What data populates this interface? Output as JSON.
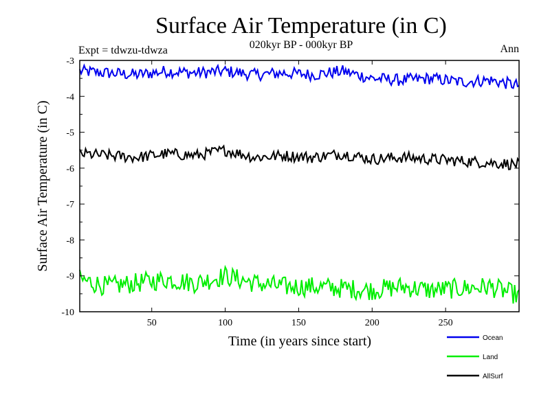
{
  "chart_data": {
    "type": "line",
    "title": "Surface Air Temperature (in C)",
    "subtitle": "020kyr BP - 000kyr BP",
    "annotation_left": "Expt = tdwzu-tdwza",
    "annotation_right": "Ann",
    "xlabel": "Time (in years since start)",
    "ylabel": "Surface Air Temperature (in C)",
    "xlim": [
      1,
      300
    ],
    "ylim": [
      -10,
      -3
    ],
    "x_ticks": [
      50,
      100,
      150,
      200,
      250
    ],
    "x_tick_labels": [
      "50",
      "100",
      "150",
      "200",
      "250"
    ],
    "y_ticks": [
      -3,
      -4,
      -5,
      -6,
      -7,
      -8,
      -9,
      -10
    ],
    "y_tick_labels": [
      "-3",
      "-4",
      "-5",
      "-6",
      "-7",
      "-8",
      "-9",
      "-10"
    ],
    "grid": false,
    "legend_position": "bottom-right, below plot",
    "series": [
      {
        "name": "Ocean",
        "color": "#0000ee",
        "x": [
          1,
          20,
          40,
          60,
          80,
          100,
          120,
          140,
          160,
          180,
          200,
          220,
          240,
          260,
          280,
          300
        ],
        "values": [
          -3.3,
          -3.35,
          -3.4,
          -3.3,
          -3.35,
          -3.3,
          -3.4,
          -3.35,
          -3.4,
          -3.3,
          -3.5,
          -3.55,
          -3.5,
          -3.6,
          -3.55,
          -3.7
        ]
      },
      {
        "name": "Land",
        "color": "#00ee00",
        "x": [
          1,
          20,
          40,
          60,
          80,
          100,
          120,
          140,
          160,
          180,
          200,
          220,
          240,
          260,
          280,
          300
        ],
        "values": [
          -9.1,
          -9.3,
          -9.2,
          -9.1,
          -9.2,
          -9.0,
          -9.2,
          -9.3,
          -9.3,
          -9.35,
          -9.4,
          -9.3,
          -9.4,
          -9.35,
          -9.3,
          -9.55
        ]
      },
      {
        "name": "AllSurf",
        "color": "#000000",
        "x": [
          1,
          20,
          40,
          60,
          80,
          100,
          120,
          140,
          160,
          180,
          200,
          220,
          240,
          260,
          280,
          300
        ],
        "values": [
          -5.6,
          -5.65,
          -5.7,
          -5.6,
          -5.65,
          -5.5,
          -5.7,
          -5.65,
          -5.7,
          -5.6,
          -5.75,
          -5.7,
          -5.75,
          -5.8,
          -5.85,
          -5.9
        ]
      }
    ]
  }
}
